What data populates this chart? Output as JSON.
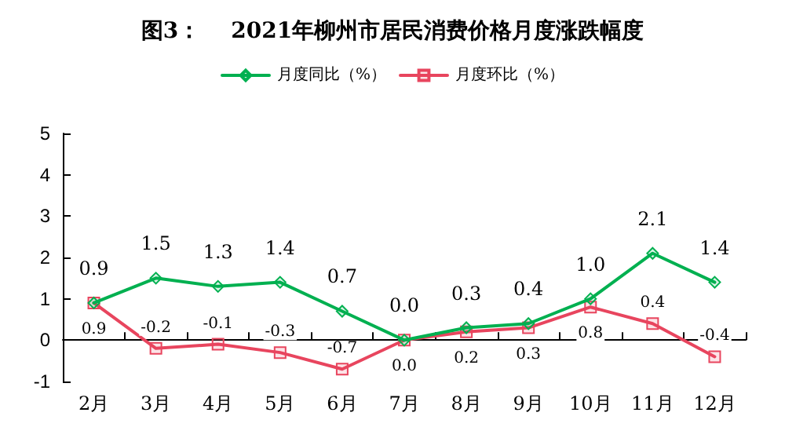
{
  "chart_data": {
    "type": "line",
    "title": "图3：    2021年柳州市居民消费价格月度涨跌幅度",
    "categories": [
      "2月",
      "3月",
      "4月",
      "5月",
      "6月",
      "7月",
      "8月",
      "9月",
      "10月",
      "11月",
      "12月"
    ],
    "series": [
      {
        "name": "月度同比（%）",
        "color": "#00b050",
        "marker": "diamond",
        "values": [
          0.9,
          1.5,
          1.3,
          1.4,
          0.7,
          0.0,
          0.3,
          0.4,
          1.0,
          2.1,
          1.4
        ],
        "value_labels": [
          "0.9",
          "1.5",
          "1.3",
          "1.4",
          "0.7",
          "0.0",
          "0.3",
          "0.4",
          "1.0",
          "2.1",
          "1.4"
        ]
      },
      {
        "name": "月度环比（%）",
        "color": "#e8455e",
        "marker": "square",
        "values": [
          0.9,
          -0.2,
          -0.1,
          -0.3,
          -0.7,
          0.0,
          0.2,
          0.3,
          0.8,
          0.4,
          -0.4
        ],
        "value_labels": [
          "0.9",
          "-0.2",
          "-0.1",
          "-0.3",
          "-0.7",
          "0.0",
          "0.2",
          "0.3",
          "0.8",
          "0.4",
          "-0.4"
        ]
      }
    ],
    "ylim": [
      -1,
      5
    ],
    "yticks": [
      -1,
      0,
      1,
      2,
      3,
      4,
      5
    ],
    "legend": "top",
    "line_style": "solid"
  }
}
